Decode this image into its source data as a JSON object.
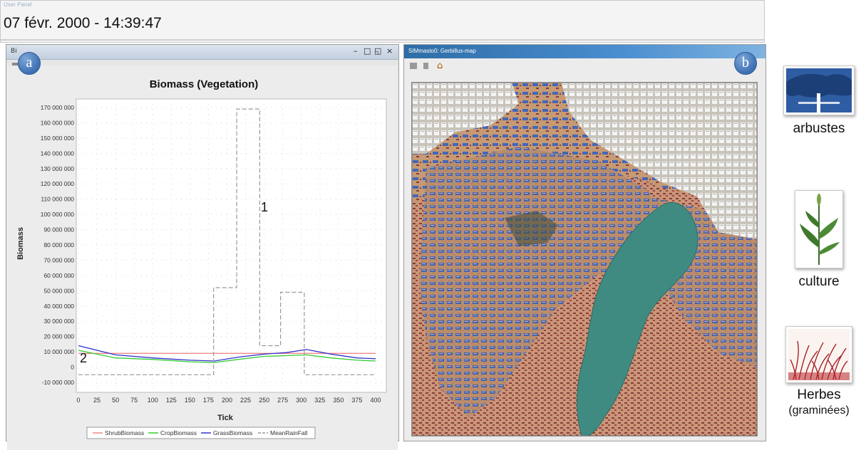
{
  "user_panel": {
    "title": "User Panel",
    "datetime": "07 févr. 2000 - 14:39:47"
  },
  "panel_a": {
    "badge": "a",
    "window_title": "Bi",
    "annotation_1": "1",
    "annotation_2": "2"
  },
  "panel_b": {
    "badge": "b",
    "window_title": "SIMmasto0: Gerbillus-map"
  },
  "window_controls": {
    "minimize": "–",
    "restore": "□",
    "maximize": "◱",
    "close": "×"
  },
  "legend": {
    "shrubs": "arbustes",
    "crops": "culture",
    "grass": "Herbes",
    "grass_sub": "(graminées)"
  },
  "colors": {
    "shrub": "#f08a8a",
    "crop": "#33cc33",
    "grass": "#3333cc",
    "rain": "#999999"
  },
  "chart_data": {
    "type": "line",
    "title": "Biomass (Vegetation)",
    "xlabel": "Tick",
    "ylabel": "Biomass",
    "xlim": [
      0,
      400
    ],
    "ylim": [
      -10000000,
      170000000
    ],
    "x_ticks": [
      0,
      25,
      50,
      75,
      100,
      125,
      150,
      175,
      200,
      225,
      250,
      275,
      300,
      325,
      350,
      375,
      400
    ],
    "y_ticks": [
      -10000000,
      0,
      10000000,
      20000000,
      30000000,
      40000000,
      50000000,
      60000000,
      70000000,
      80000000,
      90000000,
      100000000,
      110000000,
      120000000,
      130000000,
      140000000,
      150000000,
      160000000,
      170000000
    ],
    "y_tick_labels": [
      "-10 000 000",
      "0",
      "10 000 000",
      "20 000 000",
      "30 000 000",
      "40 000 000",
      "50 000 000",
      "60 000 000",
      "70 000 000",
      "80 000 000",
      "90 000 000",
      "100 000 000",
      "110 000 000",
      "120 000 000",
      "130 000 000",
      "140 000 000",
      "150 000 000",
      "160 000 000",
      "170 000 000"
    ],
    "grid": true,
    "legend_position": "bottom",
    "series": [
      {
        "name": "ShrubBiomass",
        "color": "#f08a8a",
        "dash": "solid",
        "x": [
          0,
          400
        ],
        "y": [
          9000000,
          9000000
        ]
      },
      {
        "name": "CropBiomass",
        "color": "#33cc33",
        "dash": "solid",
        "x": [
          0,
          50,
          100,
          150,
          183,
          215,
          250,
          280,
          307,
          340,
          375,
          400
        ],
        "y": [
          11000000,
          6000000,
          5000000,
          3500000,
          3000000,
          5000000,
          7000000,
          7500000,
          8000000,
          6000000,
          4500000,
          4000000
        ]
      },
      {
        "name": "GrassBiomass",
        "color": "#3333cc",
        "dash": "solid",
        "x": [
          0,
          50,
          100,
          150,
          183,
          215,
          250,
          280,
          307,
          340,
          375,
          400
        ],
        "y": [
          14000000,
          8000000,
          6000000,
          4500000,
          4000000,
          6500000,
          8500000,
          9500000,
          11500000,
          8500000,
          6000000,
          5500000
        ]
      },
      {
        "name": "MeanRainFall",
        "color": "#999999",
        "dash": "dashed",
        "x": [
          0,
          182,
          182,
          213,
          213,
          244,
          244,
          272,
          272,
          304,
          304,
          400
        ],
        "y": [
          -5000000,
          -5000000,
          52000000,
          52000000,
          169000000,
          169000000,
          14000000,
          14000000,
          49000000,
          49000000,
          -5000000,
          -5000000
        ]
      }
    ]
  }
}
